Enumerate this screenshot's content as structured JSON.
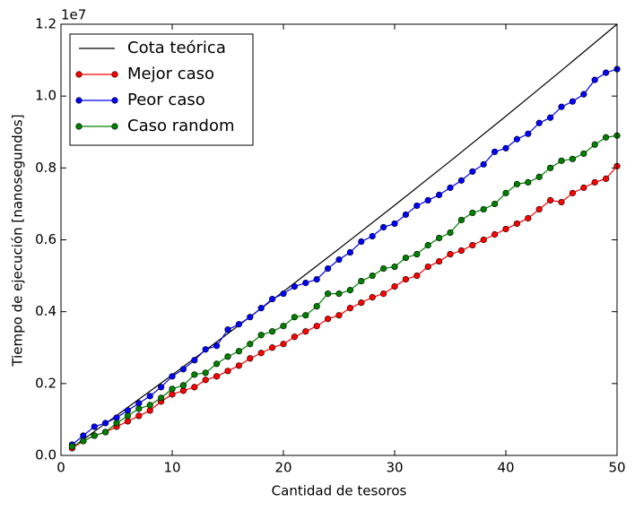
{
  "chart_data": {
    "type": "line",
    "xlabel": "Cantidad de tesoros",
    "ylabel": "Tiempo de ejecución [nanosegundos]",
    "y_offset_label": "1e7",
    "x": [
      1,
      2,
      3,
      4,
      5,
      6,
      7,
      8,
      9,
      10,
      11,
      12,
      13,
      14,
      15,
      16,
      17,
      18,
      19,
      20,
      21,
      22,
      23,
      24,
      25,
      26,
      27,
      28,
      29,
      30,
      31,
      32,
      33,
      34,
      35,
      36,
      37,
      38,
      39,
      40,
      41,
      42,
      43,
      44,
      45,
      46,
      47,
      48,
      49,
      50
    ],
    "series": [
      {
        "name": "Cota teórica",
        "color": "#000000",
        "marker": false,
        "x": [
          1,
          5,
          10,
          15,
          20,
          25,
          30,
          35,
          40,
          45,
          50
        ],
        "values": [
          0.022,
          0.111,
          0.224,
          0.339,
          0.456,
          0.575,
          0.696,
          0.819,
          0.944,
          1.071,
          1.2
        ]
      },
      {
        "name": "Mejor caso",
        "color": "#ff0000",
        "marker": true,
        "values": [
          0.02,
          0.04,
          0.055,
          0.065,
          0.08,
          0.095,
          0.11,
          0.125,
          0.15,
          0.17,
          0.18,
          0.19,
          0.21,
          0.22,
          0.235,
          0.25,
          0.27,
          0.285,
          0.3,
          0.31,
          0.33,
          0.345,
          0.36,
          0.38,
          0.39,
          0.41,
          0.425,
          0.44,
          0.45,
          0.47,
          0.49,
          0.5,
          0.525,
          0.54,
          0.56,
          0.57,
          0.585,
          0.6,
          0.615,
          0.63,
          0.645,
          0.66,
          0.685,
          0.71,
          0.705,
          0.73,
          0.745,
          0.76,
          0.77,
          0.805
        ]
      },
      {
        "name": "Peor caso",
        "color": "#0000ff",
        "marker": true,
        "values": [
          0.03,
          0.055,
          0.08,
          0.09,
          0.105,
          0.125,
          0.145,
          0.165,
          0.19,
          0.22,
          0.24,
          0.265,
          0.295,
          0.305,
          0.35,
          0.365,
          0.385,
          0.41,
          0.435,
          0.45,
          0.47,
          0.48,
          0.49,
          0.52,
          0.545,
          0.565,
          0.595,
          0.61,
          0.635,
          0.645,
          0.67,
          0.695,
          0.71,
          0.725,
          0.745,
          0.765,
          0.79,
          0.81,
          0.845,
          0.855,
          0.88,
          0.895,
          0.925,
          0.94,
          0.97,
          0.985,
          1.005,
          1.045,
          1.065,
          1.075
        ]
      },
      {
        "name": "Caso random",
        "color": "#008000",
        "marker": true,
        "values": [
          0.025,
          0.04,
          0.055,
          0.065,
          0.09,
          0.11,
          0.13,
          0.14,
          0.16,
          0.185,
          0.195,
          0.225,
          0.23,
          0.255,
          0.275,
          0.29,
          0.31,
          0.335,
          0.345,
          0.36,
          0.385,
          0.39,
          0.415,
          0.45,
          0.45,
          0.46,
          0.485,
          0.5,
          0.52,
          0.525,
          0.55,
          0.56,
          0.585,
          0.605,
          0.62,
          0.655,
          0.675,
          0.685,
          0.7,
          0.73,
          0.755,
          0.76,
          0.775,
          0.8,
          0.82,
          0.825,
          0.84,
          0.865,
          0.885,
          0.89
        ]
      }
    ],
    "xlim": [
      0,
      50
    ],
    "xticks": [
      0,
      10,
      20,
      30,
      40,
      50
    ],
    "ylim": [
      0,
      1.2
    ],
    "yticks": [
      {
        "value": 0,
        "label": "0.0"
      },
      0.2,
      0.4,
      0.6,
      0.8,
      {
        "value": 1,
        "label": "1.0"
      },
      1.2
    ],
    "legend": "upper left",
    "grid": false
  }
}
